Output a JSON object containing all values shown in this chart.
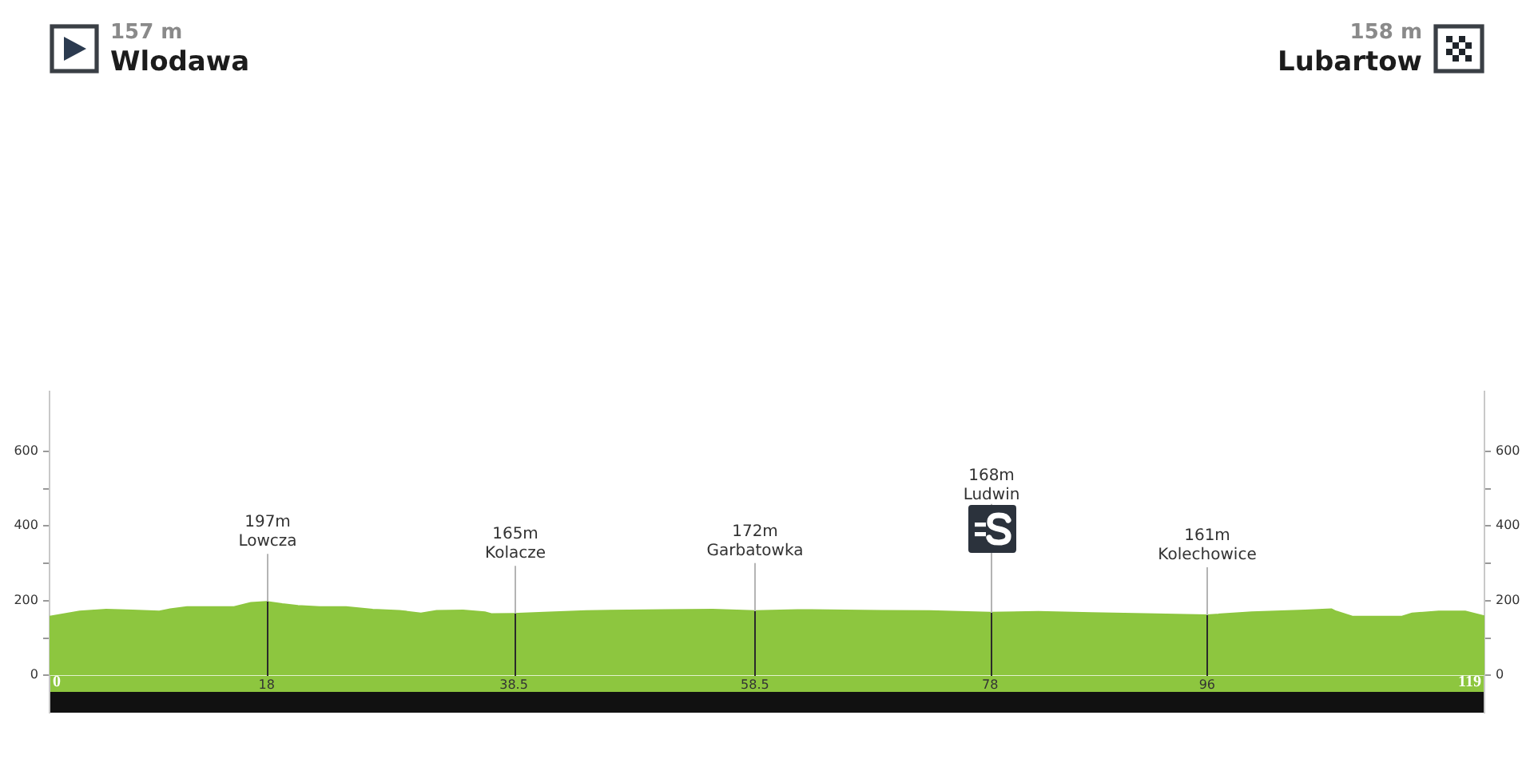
{
  "chart_data": {
    "type": "area",
    "x": [
      0,
      2.5,
      4.7,
      6.9,
      9.1,
      10,
      11.4,
      13.6,
      15.3,
      16.7,
      18,
      19.3,
      20.6,
      22.4,
      24.6,
      26.8,
      29,
      30.8,
      32.1,
      34.3,
      36.1,
      36.7,
      38.5,
      41,
      44.5,
      48,
      51,
      55,
      58.5,
      62,
      66,
      69,
      73,
      78,
      82,
      86.4,
      90.9,
      96,
      99.7,
      104.1,
      106.3,
      106.7,
      108.1,
      110.7,
      112.1,
      113,
      115.2,
      117.4,
      119
    ],
    "series": [
      {
        "color": "#8dc63f",
        "values": [
          157,
          171,
          176,
          174,
          171,
          177,
          183,
          183,
          183,
          194,
          197,
          191,
          186,
          183,
          183,
          176,
          173,
          166,
          173,
          174,
          169,
          164,
          165,
          168,
          172,
          174,
          175,
          176,
          172,
          175,
          174,
          173,
          172,
          168,
          170,
          167,
          164,
          161,
          169,
          174,
          177,
          171,
          157,
          157,
          157,
          166,
          171,
          171,
          158
        ]
      }
    ],
    "xlim": [
      0,
      119
    ],
    "xticks": [
      0,
      18,
      38.5,
      58.5,
      78,
      96,
      119
    ],
    "ylim": [
      -100,
      760
    ],
    "yticks": [
      0,
      {
        "value": 100,
        "label": null
      },
      200,
      {
        "value": 300,
        "label": null
      },
      400,
      {
        "value": 500,
        "label": null
      },
      600
    ],
    "y2lim": [
      -100,
      760
    ],
    "y2ticks": [
      0,
      {
        "value": 100,
        "label": null
      },
      200,
      {
        "value": 300,
        "label": null
      },
      400,
      {
        "value": 500,
        "label": null
      },
      600
    ],
    "ref_lines": [
      {
        "axis": "x",
        "value": 18,
        "label": "197m\nLowcza"
      },
      {
        "axis": "x",
        "value": 38.5,
        "label": "165m\nKolacze"
      },
      {
        "axis": "x",
        "value": 58.5,
        "label": "172m\nGarbatowka"
      },
      {
        "axis": "x",
        "value": 78,
        "label": "168m\nLudwin"
      },
      {
        "axis": "x",
        "value": 96,
        "label": "161m\nKolechowice"
      }
    ],
    "annotations": [
      "157 m\nWlodawa",
      "158 m\nLubartow"
    ],
    "grid": false,
    "legend": false
  }
}
